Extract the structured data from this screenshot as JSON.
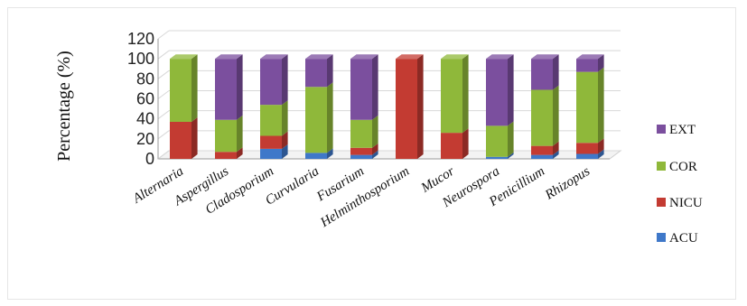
{
  "chart_data": {
    "type": "bar",
    "stacked": true,
    "style": "3d-column",
    "categories": [
      "Alternaria",
      "Aspergillus",
      "Cladosporium",
      "Curvularia",
      "Fusarium",
      "Helminthosporium",
      "Mucor",
      "Neurospora",
      "Penicillium",
      "Rhizopus"
    ],
    "series": [
      {
        "name": "ACU",
        "color": "#3f78c9",
        "values": [
          0,
          0,
          10,
          6,
          4,
          0,
          0,
          2,
          4,
          5
        ]
      },
      {
        "name": "NICU",
        "color": "#c33b32",
        "values": [
          37,
          7,
          13,
          0,
          7,
          100,
          26,
          0,
          9,
          11
        ]
      },
      {
        "name": "COR",
        "color": "#8fb83a",
        "values": [
          63,
          32,
          31,
          66,
          28,
          0,
          74,
          31,
          56,
          71
        ]
      },
      {
        "name": "EXT",
        "color": "#7b4f9e",
        "values": [
          0,
          61,
          46,
          28,
          61,
          0,
          0,
          67,
          31,
          13
        ]
      }
    ],
    "ylabel": "Percentage (%)",
    "xlabel": "",
    "ylim": [
      0,
      120
    ],
    "yticks": [
      0,
      20,
      40,
      60,
      80,
      100,
      120
    ],
    "grid": true,
    "legend_position": "right",
    "legend_order": [
      "EXT",
      "COR",
      "NICU",
      "ACU"
    ],
    "legend_labels": {
      "EXT": "EXT",
      "COR": "COR",
      "NICU": "NICU",
      "ACU": "ACU"
    }
  }
}
